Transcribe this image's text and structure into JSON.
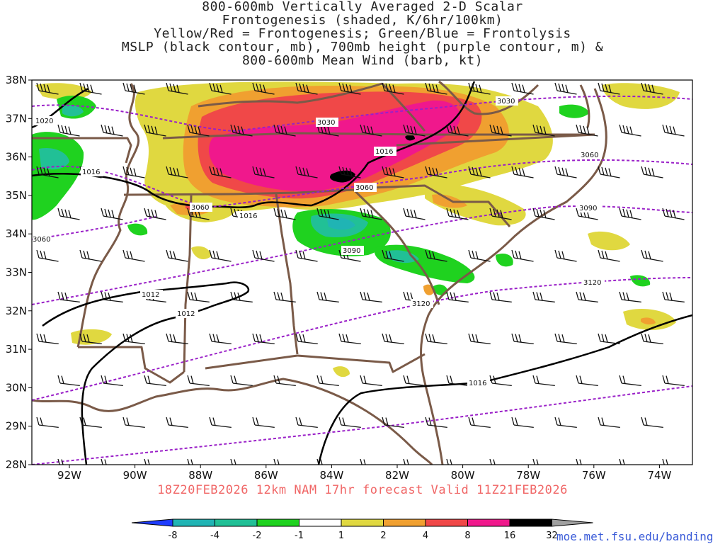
{
  "title": {
    "line1": "800-600mb Vertically Averaged 2-D Scalar",
    "line2": "Frontogenesis (shaded, K/6hr/100km)",
    "line3": "Yellow/Red = Frontogenesis;  Green/Blue = Frontolysis",
    "line4": "MSLP (black contour, mb), 700mb height (purple contour, m) &",
    "line5": "800-600mb Mean Wind (barb, kt)"
  },
  "axes": {
    "lat_labels": [
      "38N",
      "37N",
      "36N",
      "35N",
      "34N",
      "33N",
      "32N",
      "31N",
      "30N",
      "29N",
      "28N"
    ],
    "lon_labels": [
      "92W",
      "90W",
      "88W",
      "86W",
      "84W",
      "82W",
      "80W",
      "78W",
      "76W",
      "74W"
    ]
  },
  "contours": {
    "mslp_labels": [
      "1020",
      "1016",
      "1016",
      "1016",
      "1012",
      "1012",
      "1016"
    ],
    "height_labels": [
      "3030",
      "3030",
      "3060",
      "3060",
      "3060",
      "3060",
      "3090",
      "3090",
      "3120",
      "3120"
    ]
  },
  "forecast_line": "18Z20FEB2026 12km NAM 17hr forecast Valid 11Z21FEB2026",
  "colorbar": {
    "labels": [
      "-8",
      "-4",
      "-2",
      "-1",
      "1",
      "2",
      "4",
      "8",
      "16",
      "32"
    ],
    "colors": [
      "#1e3cff",
      "#20b4b4",
      "#21c096",
      "#1fd21f",
      "#ffffff",
      "#e0d840",
      "#f0a030",
      "#f04848",
      "#f0188c",
      "#000000",
      "#a0a0a0"
    ]
  },
  "credit": "moe.met.fsu.edu/banding",
  "style": {
    "border_color": "#7a5a48",
    "mslp_color": "#000000",
    "height_color": "#9a20c8",
    "frontogenesis_colors": [
      "#e0d840",
      "#f0a030",
      "#f04848",
      "#f0188c",
      "#000000"
    ],
    "frontolysis_colors": [
      "#1fd21f",
      "#21c096",
      "#20b4b4"
    ]
  }
}
